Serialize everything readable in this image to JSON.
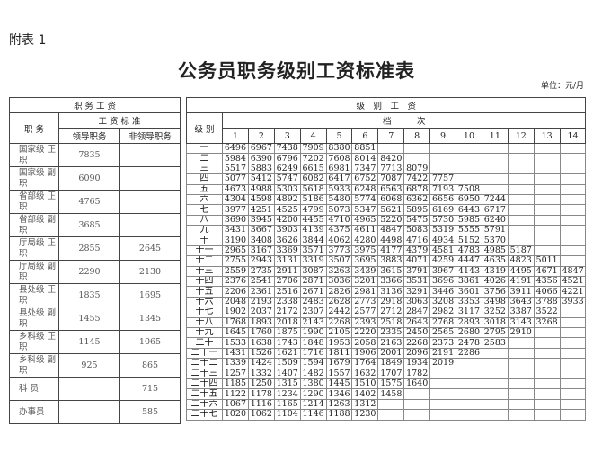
{
  "appendix_label": "附表 1",
  "title": "公务员职务级别工资标准表",
  "unit": "单位：元/月",
  "position_salary": {
    "header": "职 务 工 资",
    "col_position": "职 务",
    "col_standard": "工 资 标 准",
    "col_leading": "领导职务",
    "col_non_leading": "非领导职务",
    "rows": [
      {
        "position": "国家级 正 职",
        "leading": "7835",
        "non_leading": ""
      },
      {
        "position": "国家级 副 职",
        "leading": "6090",
        "non_leading": ""
      },
      {
        "position": "省部级 正 职",
        "leading": "4765",
        "non_leading": ""
      },
      {
        "position": "省部级 副 职",
        "leading": "3685",
        "non_leading": ""
      },
      {
        "position": "厅局级 正 职",
        "leading": "2855",
        "non_leading": "2645"
      },
      {
        "position": "厅局级 副 职",
        "leading": "2290",
        "non_leading": "2130"
      },
      {
        "position": "县处级 正 职",
        "leading": "1835",
        "non_leading": "1695"
      },
      {
        "position": "县处级 副 职",
        "leading": "1455",
        "non_leading": "1345"
      },
      {
        "position": "乡科级 正 职",
        "leading": "1145",
        "non_leading": "1065"
      },
      {
        "position": "乡科级 副 职",
        "leading": "925",
        "non_leading": "865"
      },
      {
        "position": "科 员",
        "leading": "",
        "non_leading": "715"
      },
      {
        "position": "办事员",
        "leading": "",
        "non_leading": "585"
      }
    ]
  },
  "grade_salary": {
    "header": "级　别　工　资",
    "col_grade": "级 别",
    "col_steps": "档　　　次",
    "steps": [
      "1",
      "2",
      "3",
      "4",
      "5",
      "6",
      "7",
      "8",
      "9",
      "10",
      "11",
      "12",
      "13",
      "14"
    ],
    "rows": [
      {
        "grade": "一",
        "values": [
          "6496",
          "6967",
          "7438",
          "7909",
          "8380",
          "8851"
        ]
      },
      {
        "grade": "二",
        "values": [
          "5984",
          "6390",
          "6796",
          "7202",
          "7608",
          "8014",
          "8420"
        ]
      },
      {
        "grade": "三",
        "values": [
          "5517",
          "5883",
          "6249",
          "6615",
          "6981",
          "7347",
          "7713",
          "8079"
        ]
      },
      {
        "grade": "四",
        "values": [
          "5077",
          "5412",
          "5747",
          "6082",
          "6417",
          "6752",
          "7087",
          "7422",
          "7757"
        ]
      },
      {
        "grade": "五",
        "values": [
          "4673",
          "4988",
          "5303",
          "5618",
          "5933",
          "6248",
          "6563",
          "6878",
          "7193",
          "7508"
        ]
      },
      {
        "grade": "六",
        "values": [
          "4304",
          "4598",
          "4892",
          "5186",
          "5480",
          "5774",
          "6068",
          "6362",
          "6656",
          "6950",
          "7244"
        ]
      },
      {
        "grade": "七",
        "values": [
          "3977",
          "4251",
          "4525",
          "4799",
          "5073",
          "5347",
          "5621",
          "5895",
          "6169",
          "6443",
          "6717"
        ]
      },
      {
        "grade": "八",
        "values": [
          "3690",
          "3945",
          "4200",
          "4455",
          "4710",
          "4965",
          "5220",
          "5475",
          "5730",
          "5985",
          "6240"
        ]
      },
      {
        "grade": "九",
        "values": [
          "3431",
          "3667",
          "3903",
          "4139",
          "4375",
          "4611",
          "4847",
          "5083",
          "5319",
          "5555",
          "5791"
        ]
      },
      {
        "grade": "十",
        "values": [
          "3190",
          "3408",
          "3626",
          "3844",
          "4062",
          "4280",
          "4498",
          "4716",
          "4934",
          "5152",
          "5370"
        ]
      },
      {
        "grade": "十一",
        "values": [
          "2965",
          "3167",
          "3369",
          "3571",
          "3773",
          "3975",
          "4177",
          "4379",
          "4581",
          "4783",
          "4985",
          "5187"
        ]
      },
      {
        "grade": "十二",
        "values": [
          "2755",
          "2943",
          "3131",
          "3319",
          "3507",
          "3695",
          "3883",
          "4071",
          "4259",
          "4447",
          "4635",
          "4823",
          "5011"
        ]
      },
      {
        "grade": "十三",
        "values": [
          "2559",
          "2735",
          "2911",
          "3087",
          "3263",
          "3439",
          "3615",
          "3791",
          "3967",
          "4143",
          "4319",
          "4495",
          "4671",
          "4847"
        ]
      },
      {
        "grade": "十四",
        "values": [
          "2376",
          "2541",
          "2706",
          "2871",
          "3036",
          "3201",
          "3366",
          "3531",
          "3696",
          "3861",
          "4026",
          "4191",
          "4356",
          "4521"
        ]
      },
      {
        "grade": "十五",
        "values": [
          "2206",
          "2361",
          "2516",
          "2671",
          "2826",
          "2981",
          "3136",
          "3291",
          "3446",
          "3601",
          "3756",
          "3911",
          "4066",
          "4221"
        ]
      },
      {
        "grade": "十六",
        "values": [
          "2048",
          "2193",
          "2338",
          "2483",
          "2628",
          "2773",
          "2918",
          "3063",
          "3208",
          "3353",
          "3498",
          "3643",
          "3788",
          "3933"
        ]
      },
      {
        "grade": "十七",
        "values": [
          "1902",
          "2037",
          "2172",
          "2307",
          "2442",
          "2577",
          "2712",
          "2847",
          "2982",
          "3117",
          "3252",
          "3387",
          "3522"
        ]
      },
      {
        "grade": "十八",
        "values": [
          "1768",
          "1893",
          "2018",
          "2143",
          "2268",
          "2393",
          "2518",
          "2643",
          "2768",
          "2893",
          "3018",
          "3143",
          "3268"
        ]
      },
      {
        "grade": "十九",
        "values": [
          "1645",
          "1760",
          "1875",
          "1990",
          "2105",
          "2220",
          "2335",
          "2450",
          "2565",
          "2680",
          "2795",
          "2910"
        ]
      },
      {
        "grade": "二十",
        "values": [
          "1533",
          "1638",
          "1743",
          "1848",
          "1953",
          "2058",
          "2163",
          "2268",
          "2373",
          "2478",
          "2583"
        ]
      },
      {
        "grade": "二十一",
        "values": [
          "1431",
          "1526",
          "1621",
          "1716",
          "1811",
          "1906",
          "2001",
          "2096",
          "2191",
          "2286"
        ]
      },
      {
        "grade": "二十二",
        "values": [
          "1339",
          "1424",
          "1509",
          "1594",
          "1679",
          "1764",
          "1849",
          "1934",
          "2019"
        ]
      },
      {
        "grade": "二十三",
        "values": [
          "1257",
          "1332",
          "1407",
          "1482",
          "1557",
          "1632",
          "1707",
          "1782"
        ]
      },
      {
        "grade": "二十四",
        "values": [
          "1185",
          "1250",
          "1315",
          "1380",
          "1445",
          "1510",
          "1575",
          "1640"
        ]
      },
      {
        "grade": "二十五",
        "values": [
          "1122",
          "1178",
          "1234",
          "1290",
          "1346",
          "1402",
          "1458"
        ]
      },
      {
        "grade": "二十六",
        "values": [
          "1067",
          "1116",
          "1165",
          "1214",
          "1263",
          "1312"
        ]
      },
      {
        "grade": "二十七",
        "values": [
          "1020",
          "1062",
          "1104",
          "1146",
          "1188",
          "1230"
        ]
      }
    ]
  }
}
